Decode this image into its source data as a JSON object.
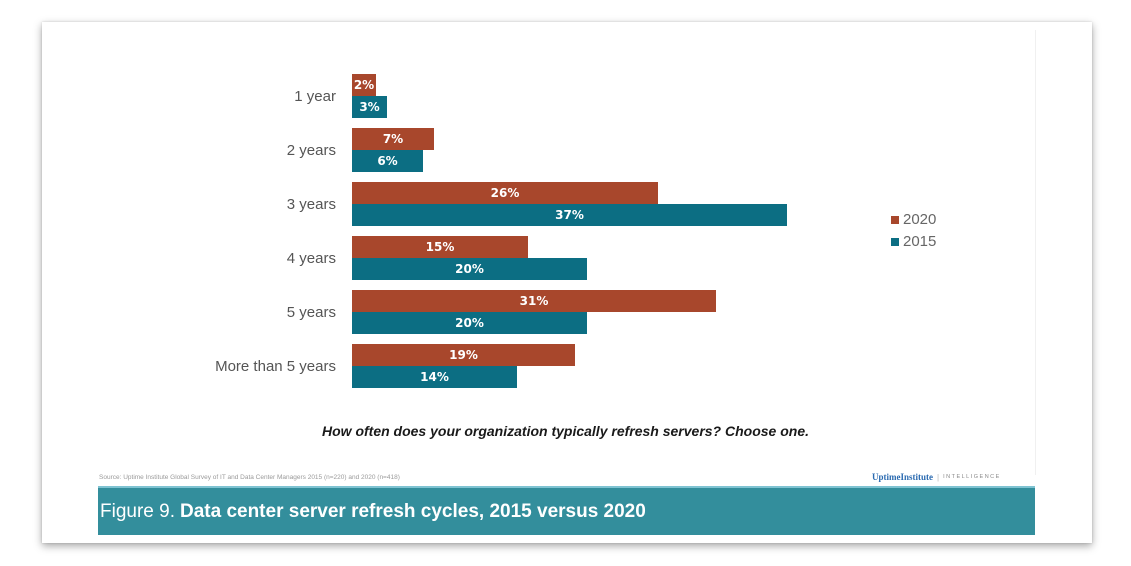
{
  "chart_data": {
    "type": "bar",
    "orientation": "horizontal",
    "title": "Data center server refresh cycles, 2015 versus 2020",
    "figure_number": "Figure 9.",
    "question": "How often does your organization typically refresh servers? Choose one.",
    "categories": [
      "1 year",
      "2 years",
      "3 years",
      "4 years",
      "5 years",
      "More than 5 years"
    ],
    "series": [
      {
        "name": "2020",
        "color": "#a8472c",
        "values": [
          2,
          7,
          26,
          15,
          31,
          19
        ]
      },
      {
        "name": "2015",
        "color": "#0c6e83",
        "values": [
          3,
          6,
          37,
          20,
          20,
          14
        ]
      }
    ],
    "value_suffix": "%",
    "xlim": [
      0,
      37
    ],
    "grid": false,
    "legend_position": "right",
    "source": "Source: Uptime Institute Global Survey of IT and Data Center Managers 2015 (n=220) and 2020 (n=418)"
  },
  "brand": {
    "name": "UptimeInstitute",
    "tag": "INTELLIGENCE"
  },
  "colors": {
    "bar_2020": "#a8472c",
    "bar_2015": "#0c6e83",
    "footer_bar": "#338e9c"
  }
}
